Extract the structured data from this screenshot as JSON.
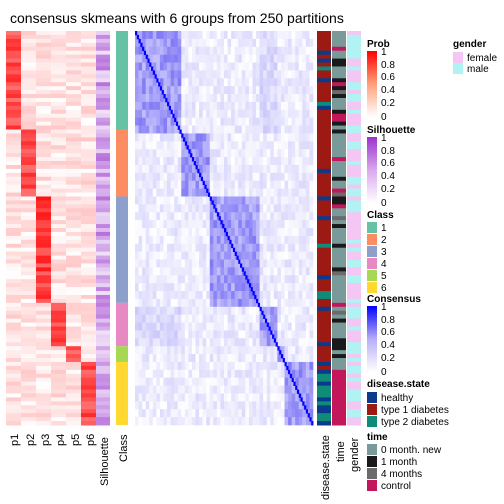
{
  "title": "consensus skmeans with 6 groups from 250 partitions",
  "colors": {
    "prob_high": "#FF0000",
    "prob_low": "#FFFFFF",
    "silhouette_high": "#9933CC",
    "consensus_high": "#0000FF",
    "class": [
      "#66C2A5",
      "#FC8D62",
      "#8DA0CB",
      "#E78AC3",
      "#A6D854",
      "#FFD92F"
    ],
    "gender": {
      "female": "#F3C6F3",
      "male": "#B1F2F2"
    },
    "disease": {
      "healthy": "#0A3A8C",
      "type 1 diabetes": "#9C1A13",
      "type 2 diabetes": "#0E8C79"
    },
    "time": {
      "0 month. new": "#7A9A9A",
      "1 month": "#1A1A1A",
      "4 months": "#6B6B6B",
      "control": "#C2185B"
    }
  },
  "columns": {
    "prob": [
      "p1",
      "p2",
      "p3",
      "p4",
      "p5",
      "p6"
    ],
    "silhouette": "Silhouette",
    "class": "Class",
    "disease": "disease.state",
    "time": "time",
    "gender": "gender"
  },
  "legends": {
    "prob": {
      "title": "Prob",
      "ticks": [
        "1",
        "0.8",
        "0.6",
        "0.4",
        "0.2",
        "0"
      ]
    },
    "silhouette": {
      "title": "Silhouette",
      "ticks": [
        "1",
        "0.8",
        "0.6",
        "0.4",
        "0.2",
        "0"
      ]
    },
    "class": {
      "title": "Class",
      "items": [
        "1",
        "2",
        "3",
        "4",
        "5",
        "6"
      ]
    },
    "consensus": {
      "title": "Consensus",
      "ticks": [
        "1",
        "0.8",
        "0.6",
        "0.4",
        "0.2",
        "0"
      ]
    },
    "disease": {
      "title": "disease.state",
      "items": [
        "healthy",
        "type 1 diabetes",
        "type 2 diabetes"
      ]
    },
    "time": {
      "title": "time",
      "items": [
        "0 month. new",
        "1 month",
        "4 months",
        "control"
      ]
    },
    "gender": {
      "title": "gender",
      "items": [
        "female",
        "male"
      ]
    }
  },
  "chart_data": {
    "type": "heatmap",
    "title": "consensus skmeans with 6 groups from 250 partitions",
    "n_samples": 100,
    "classes": [
      {
        "class": "1",
        "samples": 25
      },
      {
        "class": "2",
        "samples": 17
      },
      {
        "class": "3",
        "samples": 27
      },
      {
        "class": "4",
        "samples": 11
      },
      {
        "class": "5",
        "samples": 4
      },
      {
        "class": "6",
        "samples": 16
      }
    ],
    "consensus_range": [
      0,
      1
    ],
    "prob_range": [
      0,
      1
    ],
    "silhouette_range": [
      0,
      1
    ]
  }
}
